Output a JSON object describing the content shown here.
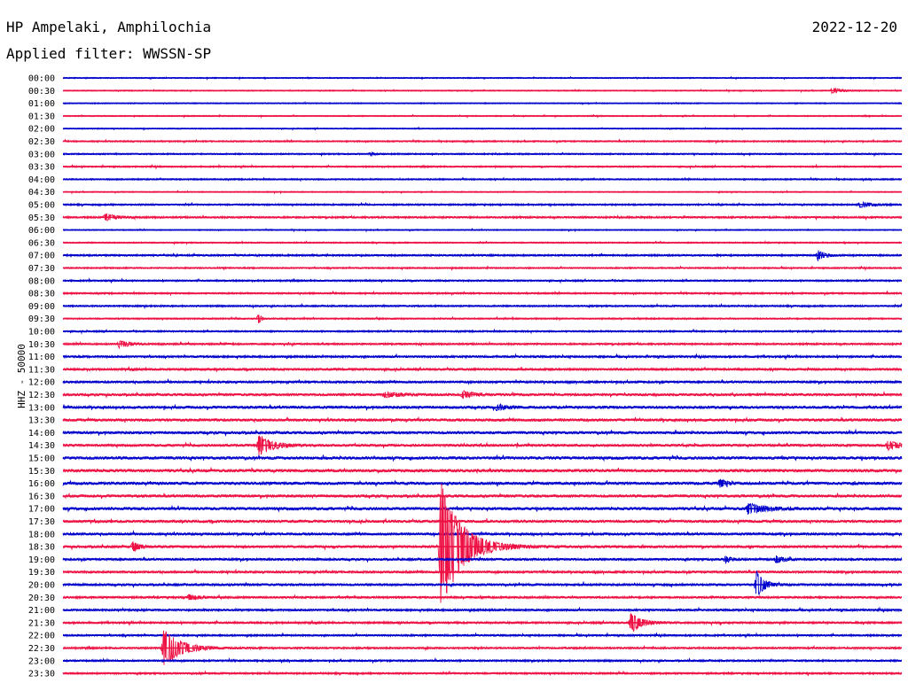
{
  "header": {
    "station": "HP Ampelaki, Amphilochia",
    "date": "2022-12-20",
    "filter": "Applied filter: WWSSN-SP"
  },
  "chart_data": {
    "type": "line",
    "ylabel": "HHZ - 50000",
    "series_colors": [
      "#0000cc",
      "#ee1144"
    ],
    "rows": [
      "00:00",
      "00:30",
      "01:00",
      "01:30",
      "02:00",
      "02:30",
      "03:00",
      "03:30",
      "04:00",
      "04:30",
      "05:00",
      "05:30",
      "06:00",
      "06:30",
      "07:00",
      "07:30",
      "08:00",
      "08:30",
      "09:00",
      "09:30",
      "10:00",
      "10:30",
      "11:00",
      "11:30",
      "12:00",
      "12:30",
      "13:00",
      "13:30",
      "14:00",
      "14:30",
      "15:00",
      "15:30",
      "16:00",
      "16:30",
      "17:00",
      "17:30",
      "18:00",
      "18:30",
      "19:00",
      "19:30",
      "20:00",
      "20:30",
      "21:00",
      "21:30",
      "22:00",
      "22:30",
      "23:00",
      "23:30"
    ],
    "trace_minutes": 30,
    "noise": [
      0.6,
      0.6,
      0.6,
      0.6,
      0.6,
      0.8,
      0.8,
      0.8,
      0.8,
      0.6,
      0.9,
      1.0,
      0.6,
      0.7,
      1.0,
      0.8,
      0.9,
      0.9,
      0.9,
      0.8,
      0.9,
      1.0,
      1.1,
      1.2,
      1.2,
      1.3,
      1.4,
      1.4,
      1.4,
      1.3,
      1.5,
      1.5,
      1.5,
      1.4,
      1.5,
      1.4,
      1.3,
      1.3,
      1.2,
      1.2,
      1.2,
      1.1,
      1.1,
      1.1,
      1.0,
      1.0,
      1.0,
      1.0
    ],
    "events": [
      {
        "row": "00:30",
        "minute": 27.5,
        "amp": 3,
        "dur": 1.0
      },
      {
        "row": "03:00",
        "minute": 11.0,
        "amp": 2,
        "dur": 0.4
      },
      {
        "row": "05:00",
        "minute": 28.5,
        "amp": 3,
        "dur": 1.2
      },
      {
        "row": "05:30",
        "minute": 1.5,
        "amp": 4,
        "dur": 1.0
      },
      {
        "row": "07:00",
        "minute": 27.0,
        "amp": 6,
        "dur": 0.6
      },
      {
        "row": "09:30",
        "minute": 7.0,
        "amp": 7,
        "dur": 0.2
      },
      {
        "row": "10:30",
        "minute": 2.0,
        "amp": 4,
        "dur": 1.0
      },
      {
        "row": "12:30",
        "minute": 14.3,
        "amp": 4,
        "dur": 1.0
      },
      {
        "row": "12:30",
        "minute": 11.5,
        "amp": 3,
        "dur": 1.5
      },
      {
        "row": "13:00",
        "minute": 15.5,
        "amp": 3,
        "dur": 1.0
      },
      {
        "row": "14:30",
        "minute": 7.0,
        "amp": 12,
        "dur": 1.3
      },
      {
        "row": "14:30",
        "minute": 29.5,
        "amp": 5,
        "dur": 1.3
      },
      {
        "row": "16:00",
        "minute": 23.5,
        "amp": 5,
        "dur": 0.5
      },
      {
        "row": "17:00",
        "minute": 24.5,
        "amp": 6,
        "dur": 1.5
      },
      {
        "row": "18:30",
        "minute": 2.5,
        "amp": 6,
        "dur": 0.6
      },
      {
        "row": "18:30",
        "minute": 13.5,
        "amp": 75,
        "dur": 2.0
      },
      {
        "row": "19:00",
        "minute": 23.7,
        "amp": 4,
        "dur": 0.5
      },
      {
        "row": "19:00",
        "minute": 25.5,
        "amp": 4,
        "dur": 0.8
      },
      {
        "row": "20:00",
        "minute": 24.8,
        "amp": 16,
        "dur": 0.7
      },
      {
        "row": "20:30",
        "minute": 4.5,
        "amp": 3,
        "dur": 1.0
      },
      {
        "row": "21:30",
        "minute": 20.3,
        "amp": 12,
        "dur": 1.0
      },
      {
        "row": "22:30",
        "minute": 3.6,
        "amp": 22,
        "dur": 1.6
      }
    ]
  }
}
